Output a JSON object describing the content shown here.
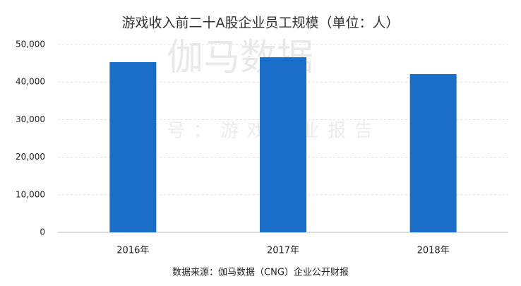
{
  "chart_data": {
    "type": "bar",
    "title": "游戏收入前二十A股企业员工规模（单位：人）",
    "categories": [
      "2016年",
      "2017年",
      "2018年"
    ],
    "values": [
      45300,
      46600,
      42100
    ],
    "color": "#1a6ec8",
    "ylim": [
      0,
      50000
    ],
    "yticks": [
      0,
      {
        "value": 10000,
        "label": "10,000"
      },
      {
        "value": 20000,
        "label": "20,000"
      },
      {
        "value": 30000,
        "label": "30,000"
      },
      {
        "value": 40000,
        "label": "40,000"
      },
      {
        "value": 50000,
        "label": "50,000"
      }
    ],
    "grid": true,
    "source": "数据来源：伽马数据（CNG）企业公开财报"
  },
  "watermark": [
    "伽马数据",
    "微信号：游戏企业报告"
  ]
}
